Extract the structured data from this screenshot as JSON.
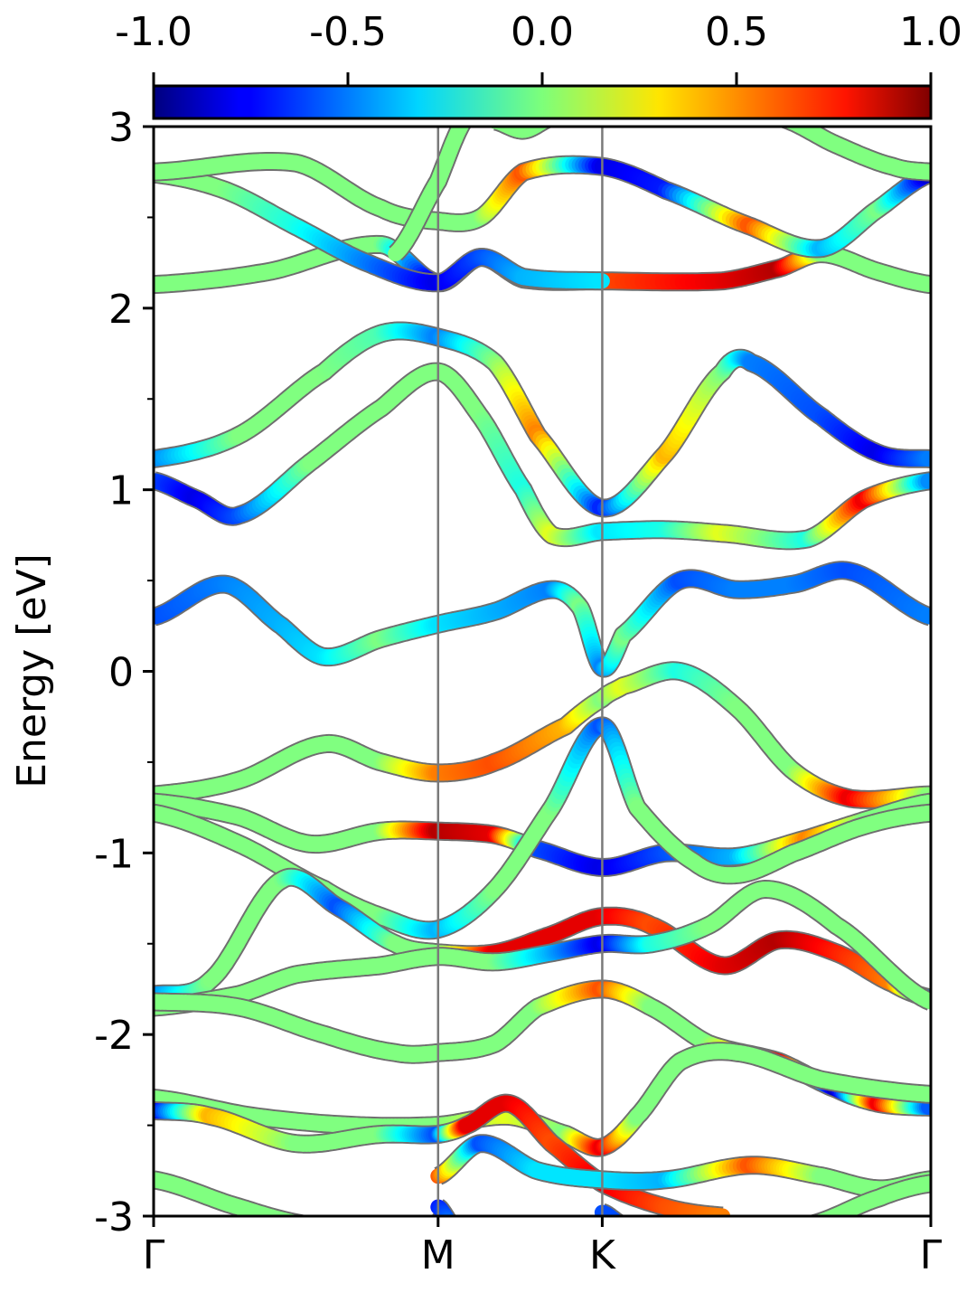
{
  "chart_data": {
    "type": "line",
    "subtype": "band-structure",
    "title": "",
    "xlabel": "",
    "ylabel": "Energy [eV]",
    "ylim": [
      -3,
      3
    ],
    "yticks": [
      "3",
      "2",
      "1",
      "0",
      "-1",
      "-2",
      "-3"
    ],
    "ytick_values": [
      3,
      2,
      1,
      0,
      -1,
      -2,
      -3
    ],
    "kpath": {
      "labels": [
        "Γ",
        "M",
        "K",
        "Γ"
      ],
      "positions": [
        0.0,
        1.0,
        1.577,
        2.732
      ]
    },
    "colorbar": {
      "colormap": "jet",
      "range": [
        -1.0,
        1.0
      ],
      "tick_labels": [
        "-1.0",
        "-0.5",
        "0.0",
        "0.5",
        "1.0"
      ],
      "tick_values": [
        -1.0,
        -0.5,
        0.0,
        0.5,
        1.0
      ],
      "position": "top"
    },
    "grid": false,
    "series": [
      {
        "points": [
          [
            0,
            2.13,
            0
          ],
          [
            0.4,
            2.2,
            0
          ],
          [
            0.8,
            2.35,
            0
          ],
          [
            1.0,
            2.14,
            -0.9
          ],
          [
            1.15,
            2.28,
            0.4
          ],
          [
            1.3,
            2.16,
            0.5
          ],
          [
            1.577,
            2.15,
            0.6
          ],
          [
            2.0,
            2.15,
            0.8
          ],
          [
            2.2,
            2.22,
            0.9
          ],
          [
            2.35,
            2.3,
            0
          ],
          [
            2.55,
            2.2,
            0
          ],
          [
            2.732,
            2.13,
            0
          ]
        ]
      },
      {
        "points": [
          [
            0,
            2.74,
            0
          ],
          [
            0.25,
            2.65,
            0
          ],
          [
            0.5,
            2.45,
            -0.2
          ],
          [
            0.75,
            2.25,
            -0.5
          ],
          [
            1.0,
            2.14,
            -0.8
          ],
          [
            1.15,
            2.28,
            -0.6
          ],
          [
            1.3,
            2.17,
            -0.4
          ],
          [
            1.577,
            2.15,
            -0.3
          ]
        ]
      },
      {
        "points": [
          [
            0,
            2.75,
            0
          ],
          [
            0.5,
            2.8,
            0
          ],
          [
            0.8,
            2.55,
            0
          ],
          [
            1.0,
            2.48,
            0
          ],
          [
            1.15,
            2.5,
            0
          ],
          [
            1.3,
            2.75,
            0.6
          ],
          [
            1.577,
            2.78,
            -0.8
          ],
          [
            1.8,
            2.65,
            -0.7
          ],
          [
            2.1,
            2.45,
            0.6
          ],
          [
            2.35,
            2.33,
            -0.4
          ],
          [
            2.55,
            2.55,
            0
          ],
          [
            2.732,
            2.74,
            -0.9
          ]
        ]
      },
      {
        "points": [
          [
            0.85,
            2.3,
            0
          ],
          [
            1.0,
            2.7,
            0
          ],
          [
            1.1,
            3.05,
            0
          ]
        ]
      },
      {
        "points": [
          [
            1.2,
            3.03,
            0
          ],
          [
            1.3,
            2.98,
            0
          ],
          [
            1.4,
            3.05,
            0
          ]
        ]
      },
      {
        "points": [
          [
            2.2,
            3.05,
            0
          ],
          [
            2.4,
            2.9,
            0
          ],
          [
            2.6,
            2.78,
            0
          ],
          [
            2.732,
            2.75,
            0
          ]
        ]
      },
      {
        "points": [
          [
            0,
            1.17,
            -0.5
          ],
          [
            0.3,
            1.3,
            0
          ],
          [
            0.6,
            1.65,
            0
          ],
          [
            0.8,
            1.86,
            -0.1
          ],
          [
            1.0,
            1.84,
            -0.5
          ],
          [
            1.2,
            1.7,
            0
          ],
          [
            1.35,
            1.3,
            0.5
          ],
          [
            1.577,
            0.9,
            -0.7
          ],
          [
            1.8,
            1.2,
            0.4
          ],
          [
            2.0,
            1.65,
            0
          ],
          [
            2.1,
            1.7,
            -0.5
          ],
          [
            2.35,
            1.4,
            -0.6
          ],
          [
            2.55,
            1.2,
            -0.8
          ],
          [
            2.732,
            1.17,
            -0.5
          ]
        ]
      },
      {
        "points": [
          [
            0,
            1.05,
            -0.6
          ],
          [
            0.15,
            0.95,
            -0.8
          ],
          [
            0.3,
            0.86,
            -0.6
          ],
          [
            0.55,
            1.15,
            0
          ],
          [
            0.8,
            1.45,
            0
          ],
          [
            1.0,
            1.65,
            0
          ],
          [
            1.15,
            1.4,
            0
          ],
          [
            1.3,
            1.0,
            -0.2
          ],
          [
            1.4,
            0.75,
            0.2
          ],
          [
            1.577,
            0.77,
            -0.3
          ],
          [
            1.8,
            0.78,
            -0.2
          ],
          [
            2.0,
            0.76,
            0.2
          ],
          [
            2.3,
            0.73,
            -0.2
          ],
          [
            2.5,
            0.95,
            0.8
          ],
          [
            2.732,
            1.05,
            -0.5
          ]
        ]
      },
      {
        "points": [
          [
            0,
            0.3,
            -0.6
          ],
          [
            0.25,
            0.48,
            -0.5
          ],
          [
            0.45,
            0.25,
            -0.4
          ],
          [
            0.6,
            0.08,
            -0.3
          ],
          [
            0.8,
            0.18,
            0
          ],
          [
            1.0,
            0.26,
            -0.3
          ],
          [
            1.2,
            0.33,
            -0.4
          ],
          [
            1.4,
            0.45,
            -0.5
          ],
          [
            1.5,
            0.35,
            0
          ],
          [
            1.577,
            0.02,
            -0.5
          ],
          [
            1.65,
            0.2,
            0
          ],
          [
            1.85,
            0.5,
            -0.6
          ],
          [
            2.05,
            0.45,
            -0.5
          ],
          [
            2.25,
            0.48,
            -0.5
          ],
          [
            2.45,
            0.55,
            -0.6
          ],
          [
            2.732,
            0.3,
            -0.5
          ]
        ]
      },
      {
        "points": [
          [
            0,
            -0.68,
            0
          ],
          [
            0.3,
            -0.6,
            0
          ],
          [
            0.6,
            -0.4,
            0
          ],
          [
            0.8,
            -0.5,
            0
          ],
          [
            1.0,
            -0.56,
            0.5
          ],
          [
            1.2,
            -0.5,
            0.6
          ],
          [
            1.45,
            -0.3,
            0.4
          ],
          [
            1.577,
            -0.15,
            0
          ],
          [
            1.65,
            -0.08,
            0.2
          ],
          [
            1.85,
            0.0,
            -0.2
          ],
          [
            2.05,
            -0.2,
            0
          ],
          [
            2.25,
            -0.55,
            0
          ],
          [
            2.45,
            -0.7,
            0.8
          ],
          [
            2.732,
            -0.68,
            0
          ]
        ]
      },
      {
        "points": [
          [
            0,
            -0.72,
            0
          ],
          [
            0.3,
            -0.8,
            0
          ],
          [
            0.55,
            -0.95,
            0
          ],
          [
            0.8,
            -0.88,
            0
          ],
          [
            1.0,
            -0.88,
            0.9
          ],
          [
            1.2,
            -0.9,
            0.8
          ],
          [
            1.35,
            -0.98,
            -0.6
          ],
          [
            1.577,
            -1.08,
            -0.8
          ],
          [
            1.8,
            -1.0,
            -0.6
          ],
          [
            2.05,
            -1.02,
            -0.4
          ],
          [
            2.3,
            -0.92,
            0.5
          ],
          [
            2.5,
            -0.82,
            0
          ],
          [
            2.732,
            -0.72,
            0
          ]
        ]
      },
      {
        "points": [
          [
            0,
            -0.78,
            0
          ],
          [
            0.3,
            -0.95,
            0
          ],
          [
            0.6,
            -1.2,
            0
          ],
          [
            0.8,
            -1.35,
            0
          ],
          [
            1.0,
            -1.42,
            -0.4
          ],
          [
            1.2,
            -1.2,
            0
          ],
          [
            1.4,
            -0.75,
            0
          ],
          [
            1.577,
            -0.3,
            -0.6
          ],
          [
            1.7,
            -0.75,
            0
          ],
          [
            1.9,
            -1.05,
            0
          ],
          [
            2.05,
            -1.12,
            0
          ],
          [
            2.25,
            -1.0,
            0
          ],
          [
            2.5,
            -0.85,
            0
          ],
          [
            2.732,
            -0.78,
            0
          ]
        ]
      },
      {
        "points": [
          [
            0,
            -1.78,
            -0.5
          ],
          [
            0.2,
            -1.7,
            0
          ],
          [
            0.45,
            -1.15,
            0
          ],
          [
            0.65,
            -1.3,
            -0.6
          ],
          [
            0.85,
            -1.5,
            0
          ],
          [
            1.0,
            -1.55,
            0
          ],
          [
            1.2,
            -1.55,
            0.8
          ],
          [
            1.4,
            -1.45,
            0.8
          ],
          [
            1.577,
            -1.35,
            0.8
          ],
          [
            1.75,
            -1.4,
            0.6
          ],
          [
            2.0,
            -1.62,
            0.8
          ],
          [
            2.2,
            -1.48,
            0.9
          ],
          [
            2.4,
            -1.55,
            0.7
          ],
          [
            2.6,
            -1.72,
            0.5
          ],
          [
            2.732,
            -1.8,
            -0.6
          ]
        ]
      },
      {
        "points": [
          [
            0,
            -1.85,
            0
          ],
          [
            0.3,
            -1.78,
            0
          ],
          [
            0.5,
            -1.67,
            0
          ],
          [
            0.8,
            -1.62,
            0
          ],
          [
            1.0,
            -1.57,
            0
          ],
          [
            1.2,
            -1.6,
            0
          ],
          [
            1.4,
            -1.55,
            -0.4
          ],
          [
            1.577,
            -1.5,
            -0.8
          ],
          [
            1.75,
            -1.5,
            -0.2
          ],
          [
            1.95,
            -1.4,
            0
          ],
          [
            2.15,
            -1.2,
            0
          ],
          [
            2.4,
            -1.4,
            0
          ],
          [
            2.732,
            -1.82,
            0
          ]
        ]
      },
      {
        "points": [
          [
            0,
            -1.82,
            0
          ],
          [
            0.3,
            -1.85,
            0
          ],
          [
            0.6,
            -2.0,
            0
          ],
          [
            0.85,
            -2.1,
            0
          ],
          [
            1.0,
            -2.1,
            0
          ],
          [
            1.2,
            -2.05,
            0
          ],
          [
            1.35,
            -1.85,
            0
          ],
          [
            1.577,
            -1.75,
            0.6
          ],
          [
            1.75,
            -1.85,
            0
          ],
          [
            1.95,
            -2.05,
            0
          ],
          [
            2.2,
            -2.15,
            0.8
          ],
          [
            2.4,
            -2.3,
            -0.9
          ],
          [
            2.55,
            -2.38,
            0.8
          ],
          [
            2.732,
            -2.4,
            -0.6
          ]
        ]
      },
      {
        "points": [
          [
            0,
            -2.35,
            0
          ],
          [
            0.35,
            -2.45,
            0
          ],
          [
            0.7,
            -2.5,
            0
          ],
          [
            1.0,
            -2.5,
            0
          ],
          [
            1.25,
            -2.45,
            0.2
          ],
          [
            1.45,
            -2.55,
            0
          ],
          [
            1.577,
            -2.62,
            0.8
          ],
          [
            1.7,
            -2.45,
            0
          ],
          [
            1.85,
            -2.15,
            0
          ],
          [
            2.05,
            -2.1,
            0
          ],
          [
            2.35,
            -2.25,
            0
          ],
          [
            2.732,
            -2.33,
            0
          ]
        ]
      },
      {
        "points": [
          [
            0,
            -2.42,
            -0.8
          ],
          [
            0.2,
            -2.45,
            0.4
          ],
          [
            0.5,
            -2.6,
            0
          ],
          [
            0.8,
            -2.55,
            0
          ],
          [
            1.0,
            -2.55,
            -0.6
          ],
          [
            1.1,
            -2.5,
            0.8
          ],
          [
            1.25,
            -2.38,
            0.8
          ],
          [
            1.4,
            -2.6,
            0.6
          ],
          [
            1.577,
            -2.82,
            0.8
          ],
          [
            1.8,
            -2.95,
            0.6
          ],
          [
            2.0,
            -3.0,
            0.5
          ]
        ]
      },
      {
        "points": [
          [
            0,
            -2.8,
            0
          ],
          [
            0.3,
            -2.95,
            0
          ],
          [
            0.55,
            -3.05,
            0
          ]
        ]
      },
      {
        "points": [
          [
            1.0,
            -2.78,
            0.6
          ],
          [
            1.15,
            -2.6,
            -0.6
          ],
          [
            1.35,
            -2.75,
            -0.3
          ],
          [
            1.577,
            -2.8,
            -0.3
          ],
          [
            1.8,
            -2.8,
            -0.4
          ],
          [
            2.1,
            -2.72,
            0.6
          ],
          [
            2.35,
            -2.78,
            0
          ],
          [
            2.55,
            -2.85,
            0
          ],
          [
            2.732,
            -2.8,
            0
          ]
        ]
      },
      {
        "points": [
          [
            1.0,
            -2.95,
            -0.7
          ],
          [
            1.05,
            -3.05,
            -0.5
          ]
        ]
      },
      {
        "points": [
          [
            1.577,
            -2.98,
            -0.6
          ],
          [
            1.65,
            -3.05,
            -0.6
          ]
        ]
      },
      {
        "points": [
          [
            2.3,
            -3.05,
            0
          ],
          [
            2.55,
            -2.9,
            0
          ],
          [
            2.732,
            -2.82,
            0
          ]
        ]
      }
    ]
  }
}
